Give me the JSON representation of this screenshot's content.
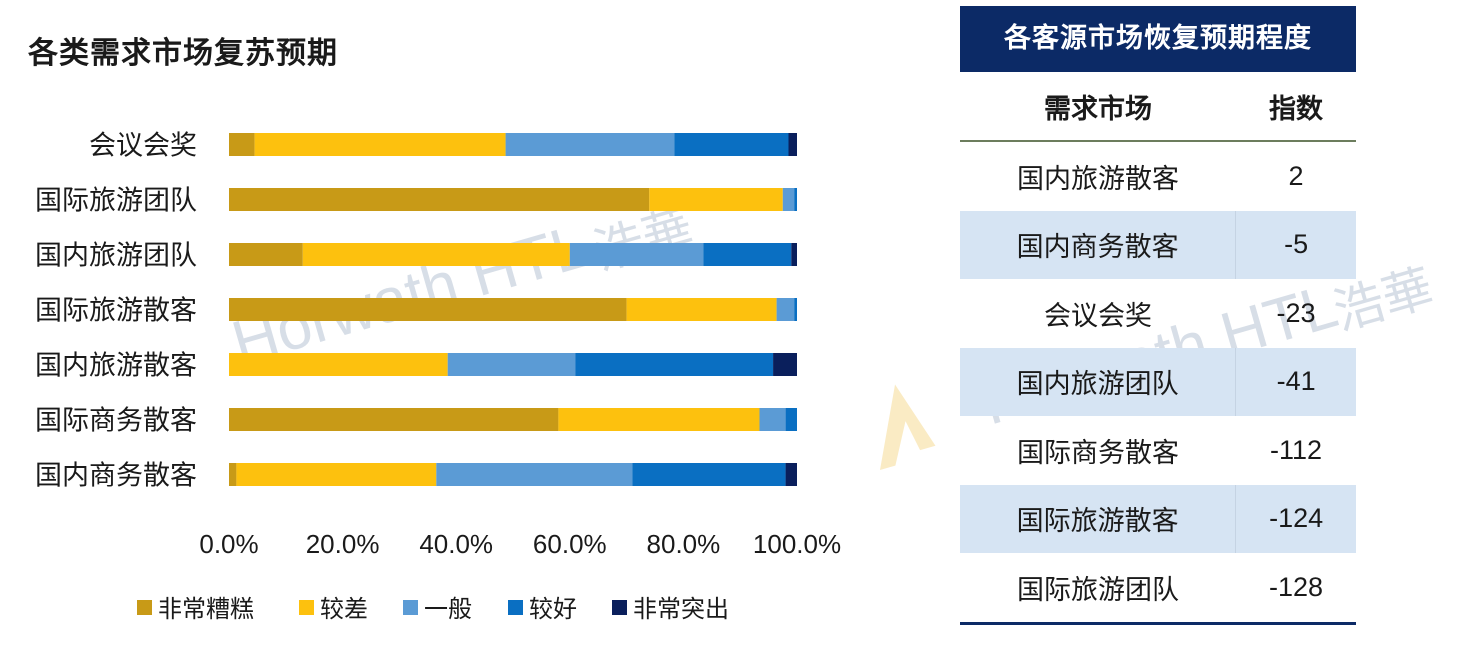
{
  "chart_title": "各类需求市场复苏预期",
  "chart_data": {
    "type": "bar",
    "orientation": "horizontal",
    "stacked": "percent",
    "categories": [
      "会议会奖",
      "国际旅游团队",
      "国内旅游团队",
      "国际旅游散客",
      "国内旅游散客",
      "国际商务散客",
      "国内商务散客"
    ],
    "series": [
      {
        "name": "非常糟糕",
        "color": "#c89a17",
        "values": [
          4.5,
          74.0,
          13.0,
          70.0,
          0,
          58.0,
          1.3
        ]
      },
      {
        "name": "较差",
        "color": "#fdc10e",
        "values": [
          44.2,
          23.5,
          47.0,
          26.4,
          38.5,
          35.4,
          35.2
        ]
      },
      {
        "name": "一般",
        "color": "#5b9bd5",
        "values": [
          29.7,
          2.0,
          23.5,
          3.1,
          22.5,
          4.6,
          34.5
        ]
      },
      {
        "name": "较好",
        "color": "#0a6fc2",
        "values": [
          20.1,
          0.5,
          15.5,
          0.5,
          34.8,
          2.0,
          27.0
        ]
      },
      {
        "name": "非常突出",
        "color": "#0a1f5c",
        "values": [
          1.5,
          0,
          1.0,
          0,
          4.2,
          0,
          2.0
        ]
      }
    ],
    "ticks": [
      "0.0%",
      "20.0%",
      "40.0%",
      "60.0%",
      "80.0%",
      "100.0%"
    ],
    "xlim": [
      0,
      100
    ],
    "legend_position": "bottom",
    "grid": false
  },
  "watermark": {
    "text": "Horwath HTL",
    "cn": "浩華"
  },
  "table": {
    "title": "各客源市场恢复预期程度",
    "headers": {
      "market": "需求市场",
      "index": "指数"
    },
    "rows": [
      {
        "market": "国内旅游散客",
        "index": "2"
      },
      {
        "market": "国内商务散客",
        "index": "-5"
      },
      {
        "market": "会议会奖",
        "index": "-23"
      },
      {
        "market": "国内旅游团队",
        "index": "-41"
      },
      {
        "market": "国际商务散客",
        "index": "-112"
      },
      {
        "market": "国际旅游散客",
        "index": "-124"
      },
      {
        "market": "国际旅游团队",
        "index": "-128"
      }
    ]
  }
}
